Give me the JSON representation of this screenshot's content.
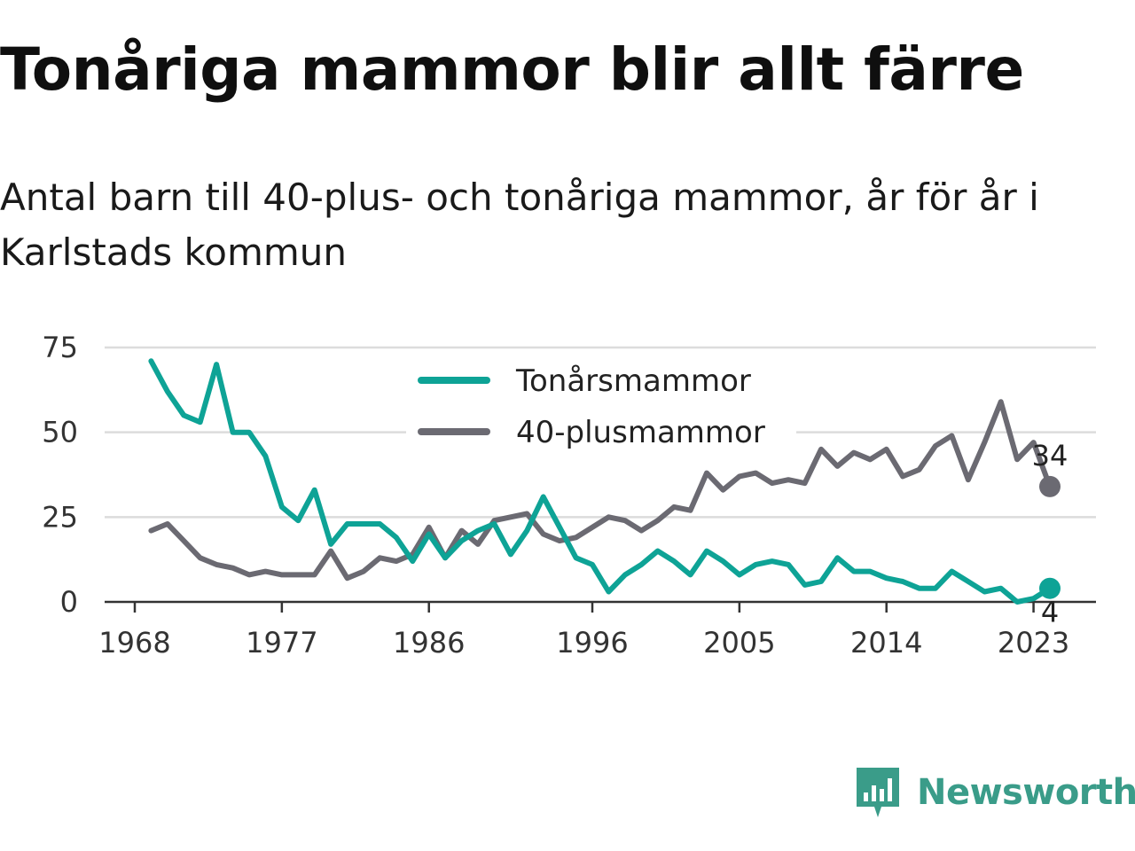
{
  "title": "Tonåriga mammor blir allt färre",
  "subtitle": "Antal barn till 40-plus- och tonåriga mammor, år för år i Karlstads kommun",
  "brand": {
    "name": "Newsworthy",
    "icon": "newsworthy-logo-icon",
    "color": "#3a9c89"
  },
  "chart_data": {
    "type": "line",
    "title": "",
    "xlabel": "",
    "ylabel": "",
    "xlim": [
      1968,
      2024
    ],
    "ylim": [
      0,
      75
    ],
    "grid": true,
    "legend_position": "top-center",
    "x_ticks": [
      1968,
      1977,
      1986,
      1996,
      2005,
      2014,
      2023
    ],
    "y_ticks": [
      0,
      25,
      50,
      75
    ],
    "x": [
      1969,
      1970,
      1971,
      1972,
      1973,
      1974,
      1975,
      1976,
      1977,
      1978,
      1979,
      1980,
      1981,
      1982,
      1983,
      1984,
      1985,
      1986,
      1987,
      1988,
      1989,
      1990,
      1991,
      1992,
      1993,
      1994,
      1995,
      1996,
      1997,
      1998,
      1999,
      2000,
      2001,
      2002,
      2003,
      2004,
      2005,
      2006,
      2007,
      2008,
      2009,
      2010,
      2011,
      2012,
      2013,
      2014,
      2015,
      2016,
      2017,
      2018,
      2019,
      2020,
      2021,
      2022,
      2023,
      2024
    ],
    "series": [
      {
        "name": "Tonårsmammor",
        "color": "#0ea396",
        "end_label": "4",
        "values": [
          71,
          62,
          55,
          53,
          70,
          50,
          50,
          43,
          28,
          24,
          33,
          17,
          23,
          23,
          23,
          19,
          12,
          20,
          13,
          18,
          21,
          23,
          14,
          21,
          31,
          22,
          13,
          11,
          3,
          8,
          11,
          15,
          12,
          8,
          15,
          12,
          8,
          11,
          12,
          11,
          5,
          6,
          13,
          9,
          9,
          7,
          6,
          4,
          4,
          9,
          6,
          3,
          4,
          0,
          1,
          4
        ]
      },
      {
        "name": "40-plusmammor",
        "color": "#6b6a72",
        "end_label": "34",
        "values": [
          21,
          23,
          18,
          13,
          11,
          10,
          8,
          9,
          8,
          8,
          8,
          15,
          7,
          9,
          13,
          12,
          14,
          22,
          13,
          21,
          17,
          24,
          25,
          26,
          20,
          18,
          19,
          22,
          25,
          24,
          21,
          24,
          28,
          27,
          38,
          33,
          37,
          38,
          35,
          36,
          35,
          45,
          40,
          44,
          42,
          45,
          37,
          39,
          46,
          49,
          36,
          47,
          59,
          42,
          47,
          34
        ]
      }
    ]
  }
}
